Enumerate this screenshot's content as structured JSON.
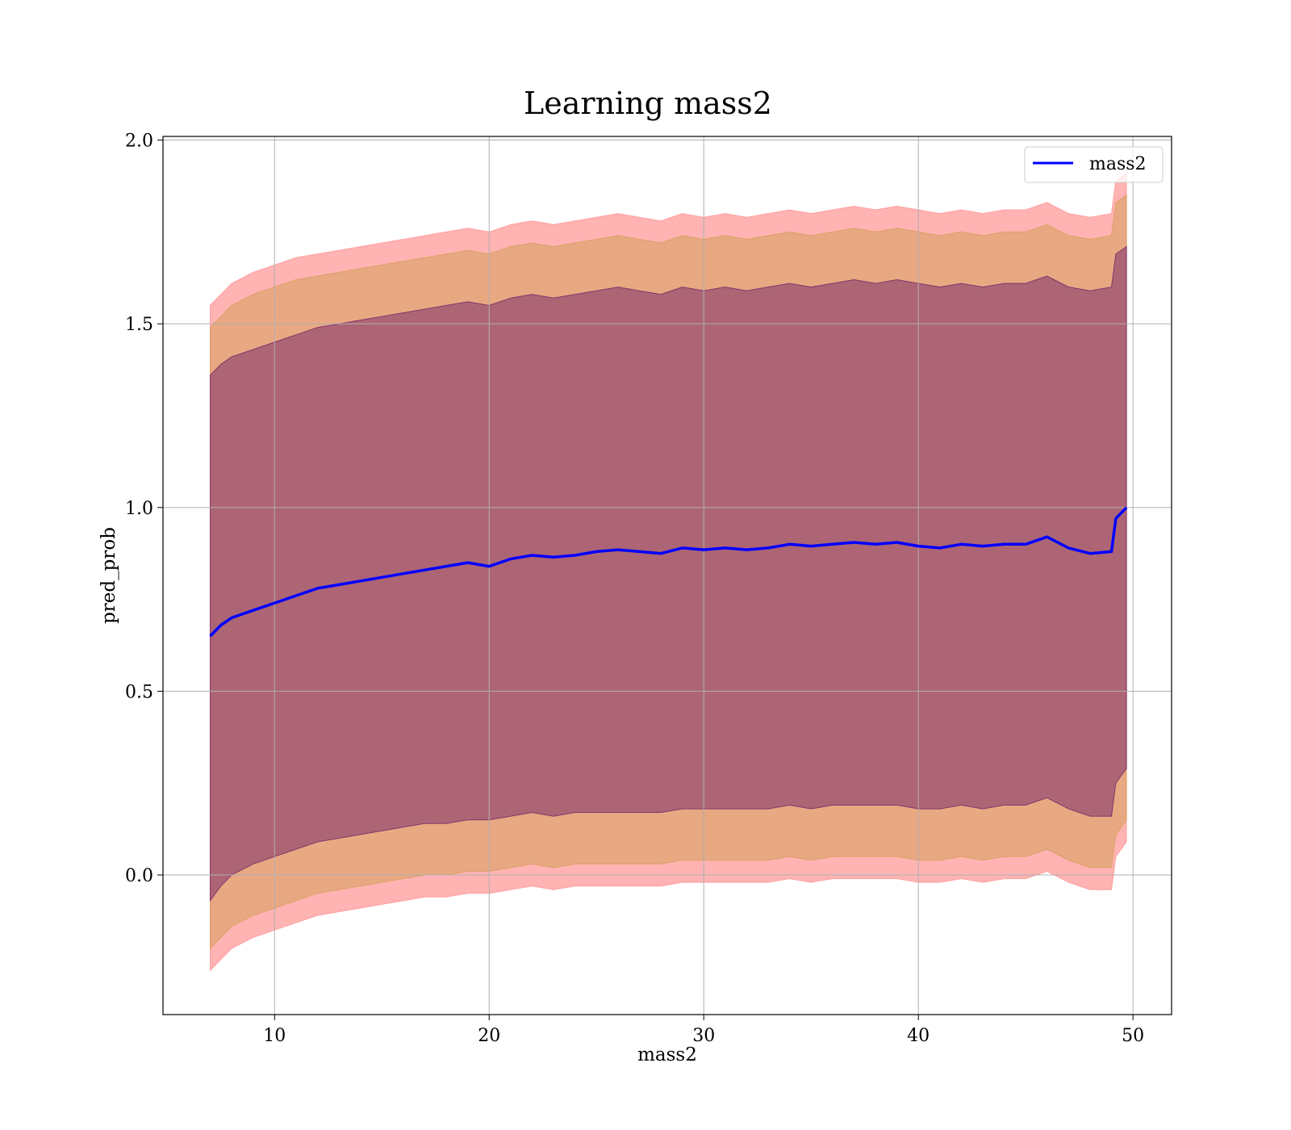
{
  "chart_data": {
    "type": "line",
    "title": "Learning mass2",
    "xlabel": "mass2",
    "ylabel": "pred_prob",
    "xlim": [
      4.8,
      51.8
    ],
    "ylim": [
      -0.38,
      2.01
    ],
    "xticks": [
      10,
      20,
      30,
      40,
      50
    ],
    "yticks": [
      0.0,
      0.5,
      1.0,
      1.5,
      2.0
    ],
    "ytick_labels": [
      "0.0",
      "0.5",
      "1.0",
      "1.5",
      "2.0"
    ],
    "grid": true,
    "legend_position": "upper-right",
    "colors": {
      "line": "#0000ff",
      "band_1sigma": "#7b2d6b",
      "band_2sigma": "#d9a060",
      "band_3sigma": "#ff9999",
      "grid": "#b0b0b0"
    },
    "series": [
      {
        "name": "mass2",
        "x": [
          7.0,
          7.5,
          8.0,
          9.0,
          10.0,
          11.0,
          12.0,
          13.0,
          14.0,
          15.0,
          16.0,
          17.0,
          18.0,
          19.0,
          20.0,
          21.0,
          22.0,
          23.0,
          24.0,
          25.0,
          26.0,
          27.0,
          28.0,
          29.0,
          30.0,
          31.0,
          32.0,
          33.0,
          34.0,
          35.0,
          36.0,
          37.0,
          38.0,
          39.0,
          40.0,
          41.0,
          42.0,
          43.0,
          44.0,
          45.0,
          46.0,
          47.0,
          48.0,
          49.0,
          49.2,
          49.7
        ],
        "y": [
          0.65,
          0.68,
          0.7,
          0.72,
          0.74,
          0.76,
          0.78,
          0.79,
          0.8,
          0.81,
          0.82,
          0.83,
          0.84,
          0.85,
          0.84,
          0.86,
          0.87,
          0.865,
          0.87,
          0.88,
          0.885,
          0.88,
          0.875,
          0.89,
          0.885,
          0.89,
          0.885,
          0.89,
          0.9,
          0.895,
          0.9,
          0.905,
          0.9,
          0.905,
          0.895,
          0.89,
          0.9,
          0.895,
          0.9,
          0.9,
          0.92,
          0.89,
          0.875,
          0.88,
          0.97,
          1.0
        ],
        "band_1sigma": {
          "lower": [
            -0.07,
            -0.03,
            0.0,
            0.03,
            0.05,
            0.07,
            0.09,
            0.1,
            0.11,
            0.12,
            0.13,
            0.14,
            0.14,
            0.15,
            0.15,
            0.16,
            0.17,
            0.16,
            0.17,
            0.17,
            0.17,
            0.17,
            0.17,
            0.18,
            0.18,
            0.18,
            0.18,
            0.18,
            0.19,
            0.18,
            0.19,
            0.19,
            0.19,
            0.19,
            0.18,
            0.18,
            0.19,
            0.18,
            0.19,
            0.19,
            0.21,
            0.18,
            0.16,
            0.16,
            0.25,
            0.29
          ],
          "upper": [
            1.36,
            1.39,
            1.41,
            1.43,
            1.45,
            1.47,
            1.49,
            1.5,
            1.51,
            1.52,
            1.53,
            1.54,
            1.55,
            1.56,
            1.55,
            1.57,
            1.58,
            1.57,
            1.58,
            1.59,
            1.6,
            1.59,
            1.58,
            1.6,
            1.59,
            1.6,
            1.59,
            1.6,
            1.61,
            1.6,
            1.61,
            1.62,
            1.61,
            1.62,
            1.61,
            1.6,
            1.61,
            1.6,
            1.61,
            1.61,
            1.63,
            1.6,
            1.59,
            1.6,
            1.69,
            1.71
          ]
        },
        "band_2sigma": {
          "lower": [
            -0.2,
            -0.17,
            -0.14,
            -0.11,
            -0.09,
            -0.07,
            -0.05,
            -0.04,
            -0.03,
            -0.02,
            -0.01,
            0.0,
            0.0,
            0.01,
            0.01,
            0.02,
            0.03,
            0.02,
            0.03,
            0.03,
            0.03,
            0.03,
            0.03,
            0.04,
            0.04,
            0.04,
            0.04,
            0.04,
            0.05,
            0.04,
            0.05,
            0.05,
            0.05,
            0.05,
            0.04,
            0.04,
            0.05,
            0.04,
            0.05,
            0.05,
            0.07,
            0.04,
            0.02,
            0.02,
            0.11,
            0.15
          ],
          "upper": [
            1.49,
            1.52,
            1.55,
            1.58,
            1.6,
            1.62,
            1.63,
            1.64,
            1.65,
            1.66,
            1.67,
            1.68,
            1.69,
            1.7,
            1.69,
            1.71,
            1.72,
            1.71,
            1.72,
            1.73,
            1.74,
            1.73,
            1.72,
            1.74,
            1.73,
            1.74,
            1.73,
            1.74,
            1.75,
            1.74,
            1.75,
            1.76,
            1.75,
            1.76,
            1.75,
            1.74,
            1.75,
            1.74,
            1.75,
            1.75,
            1.77,
            1.74,
            1.73,
            1.74,
            1.83,
            1.85
          ]
        },
        "band_3sigma": {
          "lower": [
            -0.26,
            -0.23,
            -0.2,
            -0.17,
            -0.15,
            -0.13,
            -0.11,
            -0.1,
            -0.09,
            -0.08,
            -0.07,
            -0.06,
            -0.06,
            -0.05,
            -0.05,
            -0.04,
            -0.03,
            -0.04,
            -0.03,
            -0.03,
            -0.03,
            -0.03,
            -0.03,
            -0.02,
            -0.02,
            -0.02,
            -0.02,
            -0.02,
            -0.01,
            -0.02,
            -0.01,
            -0.01,
            -0.01,
            -0.01,
            -0.02,
            -0.02,
            -0.01,
            -0.02,
            -0.01,
            -0.01,
            0.01,
            -0.02,
            -0.04,
            -0.04,
            0.05,
            0.09
          ],
          "upper": [
            1.55,
            1.58,
            1.61,
            1.64,
            1.66,
            1.68,
            1.69,
            1.7,
            1.71,
            1.72,
            1.73,
            1.74,
            1.75,
            1.76,
            1.75,
            1.77,
            1.78,
            1.77,
            1.78,
            1.79,
            1.8,
            1.79,
            1.78,
            1.8,
            1.79,
            1.8,
            1.79,
            1.8,
            1.81,
            1.8,
            1.81,
            1.82,
            1.81,
            1.82,
            1.81,
            1.8,
            1.81,
            1.8,
            1.81,
            1.81,
            1.83,
            1.8,
            1.79,
            1.8,
            1.89,
            1.91
          ]
        }
      }
    ]
  }
}
